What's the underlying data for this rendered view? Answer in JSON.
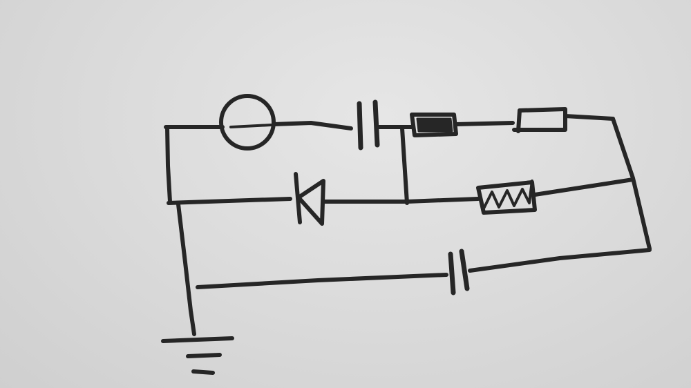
{
  "diagram": {
    "kind": "hand-drawn circuit schematic",
    "ink_color": "#262626",
    "paper_color": "#dcdcdc",
    "components": [
      {
        "id": "source",
        "symbol": "ac-voltage-source-icon"
      },
      {
        "id": "c1",
        "symbol": "capacitor-icon"
      },
      {
        "id": "r1",
        "symbol": "shaded-resistor-icon"
      },
      {
        "id": "r2",
        "symbol": "resistor-box-icon"
      },
      {
        "id": "d1",
        "symbol": "diode-icon"
      },
      {
        "id": "r3",
        "symbol": "zigzag-resistor-icon"
      },
      {
        "id": "c2",
        "symbol": "capacitor-icon"
      },
      {
        "id": "gnd",
        "symbol": "ground-icon"
      }
    ]
  }
}
